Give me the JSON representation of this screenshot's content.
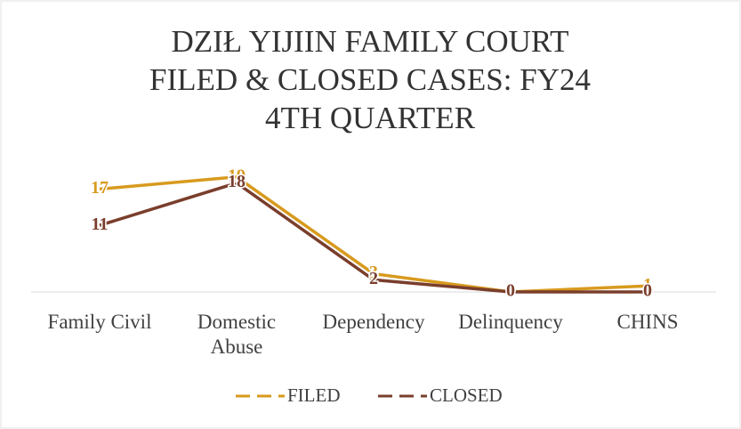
{
  "chart_data": {
    "type": "line",
    "title": [
      "DZIŁ YIJIIN FAMILY COURT",
      "FILED & CLOSED CASES: FY24",
      "4TH QUARTER"
    ],
    "categories": [
      "Family Civil",
      "Domestic Abuse",
      "Dependency",
      "Delinquency",
      "CHINS"
    ],
    "series": [
      {
        "name": "FILED",
        "color": "#d89a1e",
        "values": [
          17,
          19,
          3,
          0,
          1
        ]
      },
      {
        "name": "CLOSED",
        "color": "#7a3e2c",
        "values": [
          11,
          18,
          2,
          0,
          0
        ]
      }
    ],
    "legend": "bottom"
  }
}
